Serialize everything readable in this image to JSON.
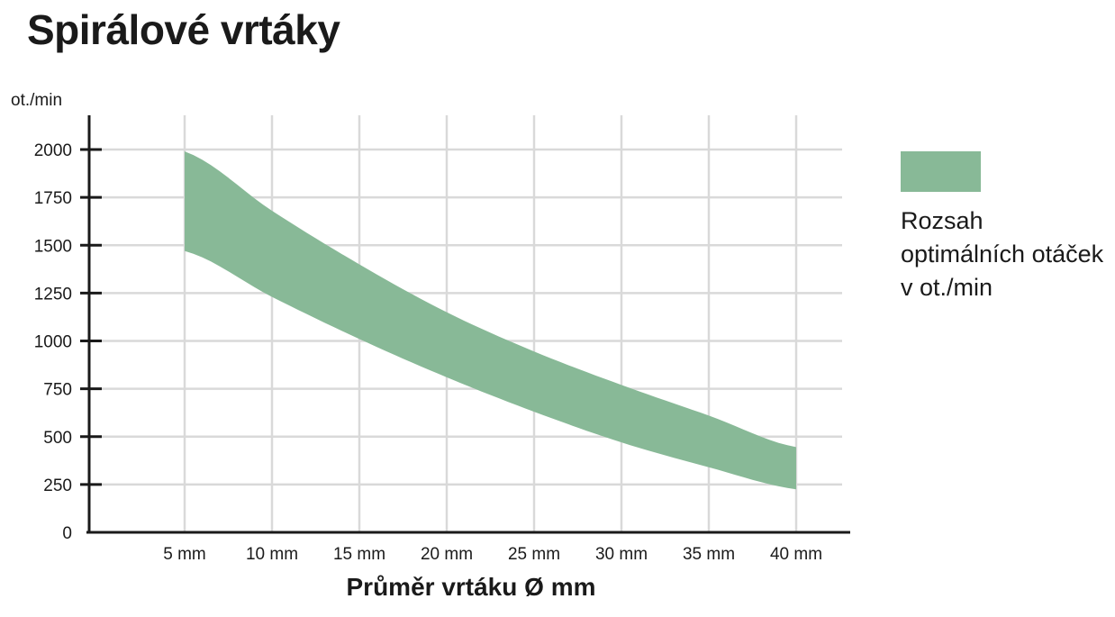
{
  "chart_data": {
    "type": "area",
    "title": "Spirálové vrtáky",
    "ylabel": "ot./min",
    "xlabel": "Průměr vrtáku Ø mm",
    "x": [
      5,
      10,
      15,
      20,
      25,
      30,
      35,
      40
    ],
    "x_tick_labels": [
      "5 mm",
      "10 mm",
      "15 mm",
      "20 mm",
      "25 mm",
      "30 mm",
      "35 mm",
      "40 mm"
    ],
    "y_ticks": [
      0,
      250,
      500,
      750,
      1000,
      1250,
      1500,
      1750,
      2000
    ],
    "y_tick_labels": [
      "0",
      "250",
      "500",
      "750",
      "1000",
      "1250",
      "1500",
      "1750",
      "2000"
    ],
    "xlim": [
      0,
      40
    ],
    "ylim": [
      0,
      2000
    ],
    "grid": true,
    "legend_position": "right",
    "series": [
      {
        "name": "Rozsah optimálních otáček v ot./min",
        "upper": [
          1990,
          1680,
          1400,
          1150,
          945,
          770,
          610,
          445
        ],
        "lower": [
          1470,
          1230,
          1010,
          810,
          630,
          470,
          340,
          225
        ],
        "color": "#88b997"
      }
    ]
  },
  "legend": {
    "label": "Rozsah optimálních otáček v ot./min",
    "color": "#88b997"
  }
}
